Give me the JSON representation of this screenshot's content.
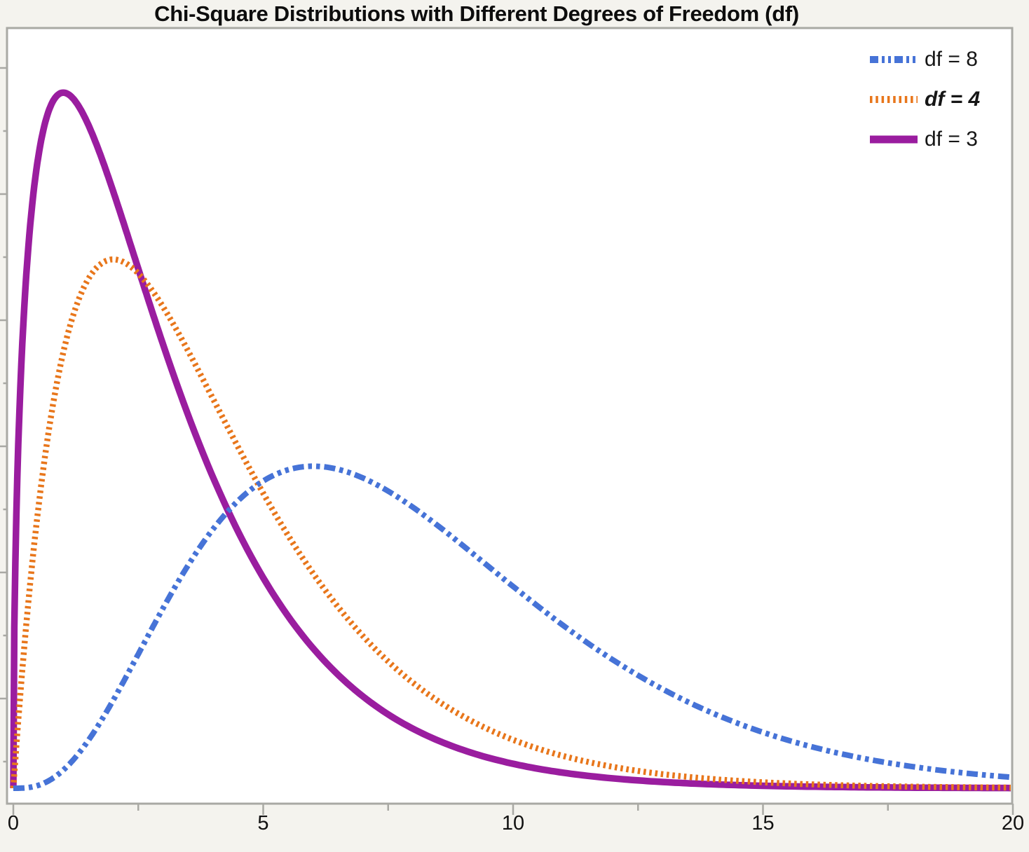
{
  "title": "Chi-Square Distributions with Different Degrees of Freedom (df)",
  "colors": {
    "background": "#F4F3EE",
    "plot_background": "#FFFFFF",
    "frame": "#A9A9A4",
    "tick": "#A9A9A4",
    "text": "#111111"
  },
  "chart_data": {
    "type": "line",
    "title": "Chi-Square Distributions with Different Degrees of Freedom (df)",
    "xlabel": "",
    "ylabel": "",
    "xlim": [
      0,
      20
    ],
    "ylim": [
      0,
      0.2645
    ],
    "x_ticks": [
      0,
      5,
      10,
      15,
      20
    ],
    "x_minor_ticks": [
      2.5,
      7.5,
      12.5,
      17.5
    ],
    "y_axis_labels_visible": false,
    "grid": false,
    "legend_position": "top-right",
    "distribution": "chi-square probability density function",
    "series": [
      {
        "label": "df = 8",
        "df": 8,
        "color": "#4673D7",
        "line_style": "dash-dot-dot",
        "dash": "16 6 5.5 6 5.5 6",
        "legend_dash": "12 5 4 5 4 5",
        "width": 8,
        "legend_emphasis": false,
        "peak": {
          "x": 6,
          "y": 0.112
        }
      },
      {
        "label": "df = 4",
        "df": 4,
        "color": "#E8761B",
        "line_style": "dotted",
        "dash": "3.5 4.8",
        "legend_dash": "3.5 4.8",
        "width": 8.5,
        "legend_emphasis": true,
        "peak": {
          "x": 2,
          "y": 0.184
        }
      },
      {
        "label": "df = 3",
        "df": 3,
        "color": "#9A1D9F",
        "line_style": "solid",
        "dash": "",
        "legend_dash": "",
        "width": 9.5,
        "legend_emphasis": false,
        "peak": {
          "x": 1,
          "y": 0.242
        }
      }
    ]
  }
}
